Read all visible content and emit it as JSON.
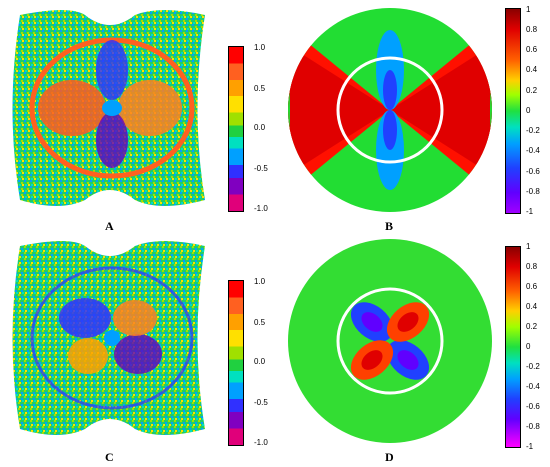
{
  "panels": [
    {
      "id": "A",
      "label": "A",
      "type": "experimental",
      "colorbar": {
        "scale": "discrete",
        "range": [
          -1.0,
          1.0
        ],
        "ticks": [
          "1.0",
          "0.5",
          "0.0",
          "-0.5",
          "-1.0"
        ]
      }
    },
    {
      "id": "B",
      "label": "B",
      "type": "simulation",
      "colorbar": {
        "scale": "continuous",
        "range": [
          -1,
          1
        ],
        "ticks": [
          "1",
          "0.8",
          "0.6",
          "0.4",
          "0.2",
          "0",
          "-0.2",
          "-0.4",
          "-0.6",
          "-0.8",
          "-1"
        ]
      }
    },
    {
      "id": "C",
      "label": "C",
      "type": "experimental",
      "colorbar": {
        "scale": "discrete",
        "range": [
          -1.0,
          1.0
        ],
        "ticks": [
          "1.0",
          "0.5",
          "0.0",
          "-0.5",
          "-1.0"
        ]
      }
    },
    {
      "id": "D",
      "label": "D",
      "type": "simulation",
      "colorbar": {
        "scale": "continuous",
        "range": [
          -1,
          1
        ],
        "ticks": [
          "1",
          "0.8",
          "0.6",
          "0.4",
          "0.2",
          "0",
          "-0.2",
          "-0.4",
          "-0.6",
          "-0.8",
          "-1"
        ]
      }
    }
  ],
  "colors": {
    "discrete_scale": [
      "#e0007a",
      "#8000c0",
      "#3030ff",
      "#00a0ff",
      "#00e0c0",
      "#20d040",
      "#a0e000",
      "#ffe000",
      "#ffa000",
      "#ff6020",
      "#ff0000"
    ],
    "continuous_scale": [
      "#8a0000",
      "#e00000",
      "#ff6000",
      "#ffd000",
      "#a0ff00",
      "#20e040",
      "#00e0c0",
      "#00a0ff",
      "#2040ff",
      "#6000ff",
      "#ff00ff"
    ],
    "background_green": "#22dd33"
  }
}
